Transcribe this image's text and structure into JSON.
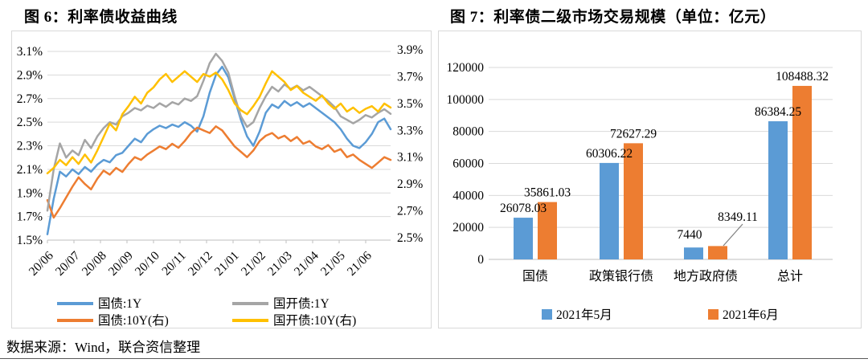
{
  "figure6": {
    "title": "图 6：利率债收益曲线"
  },
  "figure7": {
    "title": "图 7：利率债二级市场交易规模（单位：亿元）"
  },
  "source_note": "数据来源：Wind，联合资信整理",
  "colors": {
    "series_blue": "#5B9BD5",
    "series_orange": "#ED7D31",
    "series_gray": "#A5A5A5",
    "series_yellow": "#FFC000",
    "gridline": "#D9D9D9",
    "axis_line": "#BFBFBF",
    "callout_line": "#7F7F7F"
  },
  "chart_data": [
    {
      "type": "line",
      "title": "图 6：利率债收益曲线",
      "x_tick_labels": [
        "20/06",
        "20/07",
        "20/08",
        "20/09",
        "20/10",
        "20/11",
        "20/12",
        "21/01",
        "21/02",
        "21/03",
        "21/04",
        "21/05",
        "21/06"
      ],
      "left_axis": {
        "min": 1.5,
        "max": 3.1,
        "step": 0.2,
        "tick_labels": [
          "3.1%",
          "2.9%",
          "2.7%",
          "2.5%",
          "2.3%",
          "2.1%",
          "1.9%",
          "1.7%",
          "1.5%"
        ]
      },
      "right_axis": {
        "min": 2.5,
        "max": 3.9,
        "step": 0.2,
        "tick_labels": [
          "3.9%",
          "3.7%",
          "3.5%",
          "3.3%",
          "3.1%",
          "2.9%",
          "2.7%",
          "2.5%"
        ]
      },
      "grid": true,
      "legend_position": "bottom",
      "legend_rows": [
        [
          "国债:1Y",
          "国开债:1Y"
        ],
        [
          "国债:10Y(右)",
          "国开债:10Y(右)"
        ]
      ],
      "series": [
        {
          "name": "国债:1Y",
          "axis": "left",
          "color": "#5B9BD5",
          "values": [
            1.55,
            1.85,
            2.08,
            2.04,
            2.1,
            2.06,
            2.12,
            2.08,
            2.14,
            2.18,
            2.16,
            2.22,
            2.24,
            2.3,
            2.36,
            2.33,
            2.4,
            2.44,
            2.47,
            2.45,
            2.48,
            2.46,
            2.5,
            2.47,
            2.42,
            2.55,
            2.75,
            2.9,
            2.97,
            2.88,
            2.7,
            2.52,
            2.38,
            2.3,
            2.42,
            2.58,
            2.65,
            2.62,
            2.68,
            2.64,
            2.67,
            2.63,
            2.66,
            2.62,
            2.58,
            2.54,
            2.5,
            2.44,
            2.36,
            2.3,
            2.28,
            2.33,
            2.4,
            2.5,
            2.53,
            2.44
          ]
        },
        {
          "name": "国债:10Y(右)",
          "axis": "right",
          "color": "#ED7D31",
          "values": [
            2.78,
            2.65,
            2.72,
            2.8,
            2.88,
            2.95,
            2.9,
            2.86,
            2.94,
            3.0,
            2.97,
            3.02,
            2.99,
            3.05,
            3.1,
            3.08,
            3.12,
            3.15,
            3.18,
            3.16,
            3.2,
            3.17,
            3.22,
            3.28,
            3.32,
            3.3,
            3.28,
            3.33,
            3.3,
            3.24,
            3.18,
            3.14,
            3.1,
            3.15,
            3.22,
            3.26,
            3.28,
            3.24,
            3.26,
            3.22,
            3.25,
            3.2,
            3.22,
            3.18,
            3.16,
            3.19,
            3.14,
            3.16,
            3.1,
            3.12,
            3.08,
            3.05,
            3.02,
            3.06,
            3.1,
            3.08
          ]
        },
        {
          "name": "国开债:1Y",
          "axis": "left",
          "color": "#A5A5A5",
          "values": [
            1.75,
            2.1,
            2.32,
            2.2,
            2.26,
            2.22,
            2.35,
            2.28,
            2.38,
            2.45,
            2.5,
            2.48,
            2.55,
            2.58,
            2.62,
            2.6,
            2.64,
            2.62,
            2.66,
            2.63,
            2.67,
            2.65,
            2.7,
            2.68,
            2.72,
            2.85,
            3.0,
            3.08,
            3.02,
            2.92,
            2.72,
            2.55,
            2.46,
            2.5,
            2.62,
            2.72,
            2.8,
            2.76,
            2.82,
            2.78,
            2.81,
            2.77,
            2.8,
            2.76,
            2.72,
            2.68,
            2.63,
            2.55,
            2.52,
            2.49,
            2.52,
            2.56,
            2.54,
            2.58,
            2.61,
            2.57
          ]
        },
        {
          "name": "国开债:10Y(右)",
          "axis": "right",
          "color": "#FFC000",
          "values": [
            2.98,
            3.02,
            3.08,
            3.04,
            3.1,
            3.05,
            3.12,
            3.06,
            3.15,
            3.25,
            3.35,
            3.3,
            3.42,
            3.48,
            3.55,
            3.5,
            3.58,
            3.62,
            3.68,
            3.72,
            3.66,
            3.7,
            3.74,
            3.7,
            3.66,
            3.72,
            3.7,
            3.73,
            3.68,
            3.6,
            3.5,
            3.45,
            3.42,
            3.48,
            3.55,
            3.65,
            3.74,
            3.7,
            3.66,
            3.6,
            3.63,
            3.58,
            3.55,
            3.52,
            3.56,
            3.5,
            3.46,
            3.5,
            3.44,
            3.47,
            3.43,
            3.46,
            3.48,
            3.44,
            3.5,
            3.47
          ]
        }
      ]
    },
    {
      "type": "bar",
      "title": "图 7：利率债二级市场交易规模（单位：亿元）",
      "categories": [
        "国债",
        "政策银行债",
        "地方政府债",
        "总计"
      ],
      "series": [
        {
          "name": "2021年5月",
          "color": "#5B9BD5",
          "values": [
            26078.03,
            60306.22,
            7440,
            86384.25
          ],
          "data_labels": [
            "26078.03",
            "60306.22",
            "7440",
            "86384.25"
          ]
        },
        {
          "name": "2021年6月",
          "color": "#ED7D31",
          "values": [
            35861.03,
            72627.29,
            8349.11,
            108488.32
          ],
          "data_labels": [
            "35861.03",
            "72627.29",
            "8349.11",
            "108488.32"
          ]
        }
      ],
      "y_axis": {
        "min": 0,
        "max": 120000,
        "step": 20000,
        "tick_labels": [
          "0",
          "20000",
          "40000",
          "60000",
          "80000",
          "100000",
          "120000"
        ]
      },
      "grid": true,
      "legend_position": "bottom",
      "callout": {
        "label": "8349.11",
        "category": "地方政府债",
        "series": "2021年6月"
      }
    }
  ]
}
